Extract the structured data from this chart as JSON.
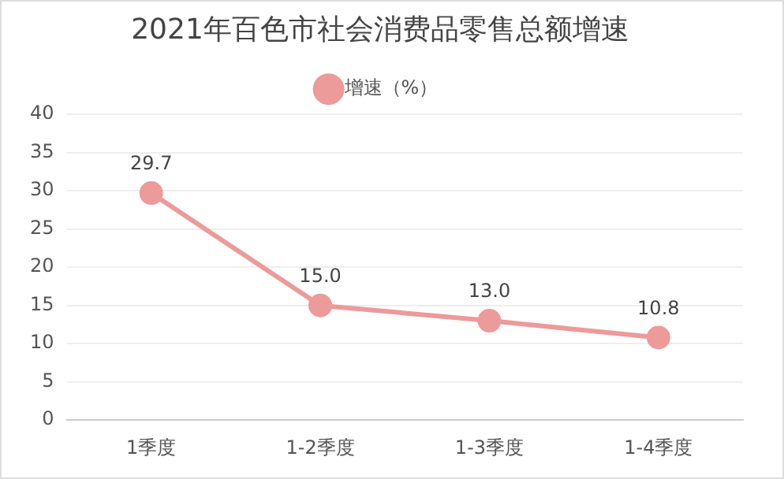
{
  "chart_data": {
    "type": "line",
    "title": "2021年百色市社会消费品零售总额增速",
    "categories": [
      "1季度",
      "1-2季度",
      "1-3季度",
      "1-4季度"
    ],
    "series": [
      {
        "name": "增速（%）",
        "color": "#ec9a9a",
        "values": [
          29.7,
          15.0,
          13.0,
          10.8
        ],
        "value_labels": [
          "29.7",
          "15.0",
          "13.0",
          "10.8"
        ]
      }
    ],
    "ylim": [
      0,
      40
    ],
    "yticks": [
      0,
      5,
      10,
      15,
      20,
      25,
      30,
      35,
      40
    ],
    "grid": "y",
    "legend": "top",
    "marker": "circle",
    "line_style": "solid"
  }
}
